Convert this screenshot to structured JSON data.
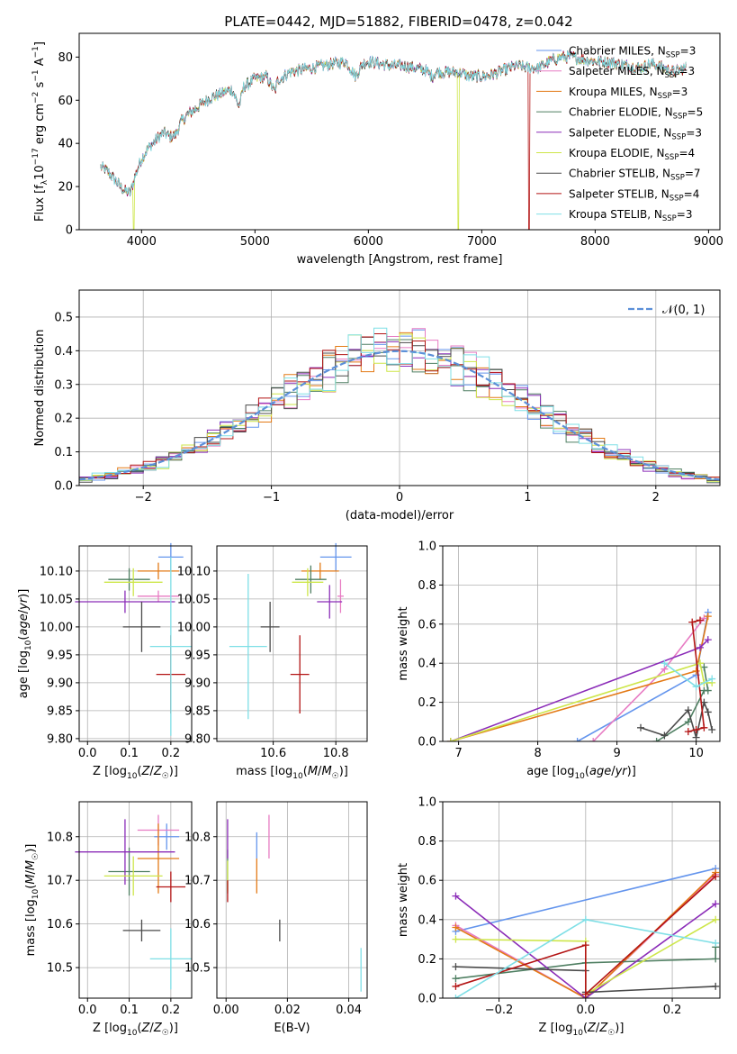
{
  "figure_title": "PLATE=0442, MJD=51882, FIBERID=0478, z=0.042",
  "model_colors": {
    "Chabrier MILES": "#6495ed",
    "Salpeter MILES": "#e77bc3",
    "Kroupa MILES": "#e37a16",
    "Chabrier ELODIE": "#4f7f62",
    "Salpeter ELODIE": "#8b2cb8",
    "Kroupa ELODIE": "#cde649",
    "Chabrier STELIB": "#4a4a4a",
    "Salpeter STELIB": "#b31414",
    "Kroupa STELIB": "#7fdfe6"
  },
  "chart_data": [
    {
      "id": "spectrum",
      "type": "line",
      "title": "PLATE=0442, MJD=51882, FIBERID=0478, z=0.042",
      "xlabel": "wavelength [Angstrom, rest frame]",
      "ylabel_parts": [
        "Flux [f",
        "λ",
        "10",
        "−17",
        " erg cm",
        "−2",
        " s",
        "−1",
        " A",
        "−1",
        "]"
      ],
      "xlim": [
        3450,
        9100
      ],
      "ylim": [
        0,
        91
      ],
      "xticks": [
        4000,
        5000,
        6000,
        7000,
        8000,
        9000
      ],
      "yticks": [
        0,
        20,
        40,
        60,
        80
      ],
      "legend_position": "top-right",
      "legend": [
        {
          "name": "Chabrier MILES",
          "nssp": "3"
        },
        {
          "name": "Salpeter MILES",
          "nssp": "3"
        },
        {
          "name": "Kroupa MILES",
          "nssp": "3"
        },
        {
          "name": "Chabrier ELODIE",
          "nssp": "5"
        },
        {
          "name": "Salpeter ELODIE",
          "nssp": "3"
        },
        {
          "name": "Kroupa ELODIE",
          "nssp": "4"
        },
        {
          "name": "Chabrier STELIB",
          "nssp": "7"
        },
        {
          "name": "Salpeter STELIB",
          "nssp": "4"
        },
        {
          "name": "Kroupa STELIB",
          "nssp": "3"
        }
      ],
      "continuum": [
        [
          3640,
          29
        ],
        [
          3700,
          27
        ],
        [
          3750,
          24
        ],
        [
          3800,
          21
        ],
        [
          3850,
          18
        ],
        [
          3900,
          17
        ],
        [
          3950,
          26
        ],
        [
          4000,
          33
        ],
        [
          4050,
          37
        ],
        [
          4100,
          40
        ],
        [
          4150,
          43
        ],
        [
          4200,
          45
        ],
        [
          4250,
          43
        ],
        [
          4300,
          44
        ],
        [
          4350,
          50
        ],
        [
          4400,
          53
        ],
        [
          4500,
          57
        ],
        [
          4600,
          61
        ],
        [
          4700,
          63
        ],
        [
          4800,
          65
        ],
        [
          4860,
          57
        ],
        [
          4900,
          66
        ],
        [
          5000,
          70
        ],
        [
          5100,
          71
        ],
        [
          5175,
          64
        ],
        [
          5200,
          69
        ],
        [
          5300,
          73
        ],
        [
          5400,
          74
        ],
        [
          5500,
          75
        ],
        [
          5600,
          76
        ],
        [
          5700,
          77
        ],
        [
          5800,
          78
        ],
        [
          5890,
          71
        ],
        [
          5950,
          77
        ],
        [
          6000,
          78
        ],
        [
          6200,
          76
        ],
        [
          6300,
          76
        ],
        [
          6400,
          75
        ],
        [
          6500,
          74
        ],
        [
          6563,
          71
        ],
        [
          6600,
          73
        ],
        [
          6800,
          73
        ],
        [
          6900,
          71
        ],
        [
          7000,
          71
        ],
        [
          7100,
          72
        ],
        [
          7200,
          74
        ],
        [
          7300,
          76
        ],
        [
          7400,
          75
        ],
        [
          7500,
          75
        ],
        [
          7600,
          78
        ],
        [
          7700,
          80
        ],
        [
          7800,
          80
        ],
        [
          7900,
          79
        ],
        [
          8000,
          78
        ],
        [
          8100,
          78
        ],
        [
          8200,
          77
        ],
        [
          8300,
          76
        ],
        [
          8400,
          75
        ],
        [
          8500,
          77
        ],
        [
          8600,
          75
        ],
        [
          8700,
          73
        ],
        [
          8800,
          75
        ]
      ],
      "dropouts": [
        {
          "model": "Kroupa ELODIE",
          "x_from": 3925,
          "x_to": 3935
        },
        {
          "model": "Kroupa ELODIE",
          "x_from": 6790,
          "x_to": 6800
        },
        {
          "model": "Salpeter STELIB",
          "x_from": 7410,
          "x_to": 7420
        }
      ]
    },
    {
      "id": "residuals",
      "type": "step",
      "xlabel": "(data-model)/error",
      "ylabel": "Normed distribution",
      "xlim": [
        -2.5,
        2.5
      ],
      "ylim": [
        0,
        0.58
      ],
      "xticks": [
        -2,
        -1,
        0,
        1,
        2
      ],
      "yticks": [
        0.0,
        0.1,
        0.2,
        0.3,
        0.4,
        0.5
      ],
      "grid": true,
      "legend_position": "top-right",
      "reference_label": "𝒩(0, 1)",
      "reference_color": "#5b8fd8"
    },
    {
      "id": "age_vs_Z",
      "type": "errorbar",
      "xlabel": "Z [log10(Z/Z☉)]",
      "ylabel": "age  [log10(age/yr)]",
      "xlim": [
        -0.02,
        0.25
      ],
      "ylim": [
        9.795,
        10.145
      ],
      "xticks": [
        0.0,
        0.1,
        0.2
      ],
      "yticks": [
        9.8,
        9.85,
        9.9,
        9.95,
        10.0,
        10.05,
        10.1
      ],
      "grid": true,
      "points": [
        {
          "model": "Chabrier MILES",
          "x": 0.2,
          "xerr": 0.03,
          "y": 10.125,
          "yerr": 0.025
        },
        {
          "model": "Salpeter MILES",
          "x": 0.17,
          "xerr": 0.05,
          "y": 10.055,
          "yerr": 0.01
        },
        {
          "model": "Kroupa MILES",
          "x": 0.17,
          "xerr": 0.05,
          "y": 10.1,
          "yerr": 0.015
        },
        {
          "model": "Chabrier ELODIE",
          "x": 0.1,
          "xerr": 0.05,
          "y": 10.085,
          "yerr": 0.02
        },
        {
          "model": "Salpeter ELODIE",
          "x": 0.09,
          "xerr": 0.12,
          "y": 10.045,
          "yerr": 0.02
        },
        {
          "model": "Kroupa ELODIE",
          "x": 0.11,
          "xerr": 0.07,
          "y": 10.08,
          "yerr": 0.025
        },
        {
          "model": "Chabrier STELIB",
          "x": 0.13,
          "xerr": 0.045,
          "y": 10.0,
          "yerr": 0.045
        },
        {
          "model": "Salpeter STELIB",
          "x": 0.2,
          "xerr": 0.035,
          "y": 9.915,
          "yerr": 0.07
        },
        {
          "model": "Kroupa STELIB",
          "x": 0.2,
          "xerr": 0.05,
          "y": 9.965,
          "yerr": 0.16
        }
      ]
    },
    {
      "id": "age_vs_mass",
      "type": "errorbar",
      "xlabel": "mass [log10(M/M☉)]",
      "ylabel": "",
      "xlim": [
        10.42,
        10.9
      ],
      "ylim": [
        9.795,
        10.145
      ],
      "xticks": [
        10.6,
        10.8
      ],
      "yticks": [
        9.8,
        9.85,
        9.9,
        9.95,
        10.0,
        10.05,
        10.1
      ],
      "grid": true,
      "points": [
        {
          "model": "Chabrier MILES",
          "x": 10.8,
          "xerr": 0.05,
          "y": 10.125,
          "yerr": 0.025
        },
        {
          "model": "Salpeter MILES",
          "x": 10.815,
          "xerr": 0.01,
          "y": 10.055,
          "yerr": 0.03
        },
        {
          "model": "Kroupa MILES",
          "x": 10.75,
          "xerr": 0.06,
          "y": 10.1,
          "yerr": 0.015
        },
        {
          "model": "Chabrier ELODIE",
          "x": 10.72,
          "xerr": 0.05,
          "y": 10.085,
          "yerr": 0.025
        },
        {
          "model": "Salpeter ELODIE",
          "x": 10.78,
          "xerr": 0.04,
          "y": 10.045,
          "yerr": 0.03
        },
        {
          "model": "Kroupa ELODIE",
          "x": 10.71,
          "xerr": 0.05,
          "y": 10.08,
          "yerr": 0.025
        },
        {
          "model": "Chabrier STELIB",
          "x": 10.59,
          "xerr": 0.03,
          "y": 10.0,
          "yerr": 0.045
        },
        {
          "model": "Salpeter STELIB",
          "x": 10.685,
          "xerr": 0.03,
          "y": 9.915,
          "yerr": 0.07
        },
        {
          "model": "Kroupa STELIB",
          "x": 10.52,
          "xerr": 0.06,
          "y": 9.965,
          "yerr": 0.13
        }
      ]
    },
    {
      "id": "mass_weight_vs_age",
      "type": "line",
      "xlabel": "age  [log10(age/yr)]",
      "ylabel": "mass weight",
      "xlim": [
        6.8,
        10.3
      ],
      "ylim": [
        0,
        1
      ],
      "xticks": [
        7,
        8,
        9,
        10
      ],
      "yticks": [
        0.0,
        0.2,
        0.4,
        0.6,
        0.8,
        1.0
      ],
      "grid": true,
      "series": [
        {
          "model": "Chabrier MILES",
          "points": [
            [
              8.5,
              0.0
            ],
            [
              10.0,
              0.34
            ],
            [
              10.15,
              0.66
            ]
          ]
        },
        {
          "model": "Salpeter MILES",
          "points": [
            [
              8.7,
              0.0
            ],
            [
              9.6,
              0.37
            ],
            [
              10.1,
              0.63
            ]
          ]
        },
        {
          "model": "Kroupa MILES",
          "points": [
            [
              6.9,
              0.0
            ],
            [
              10.0,
              0.36
            ],
            [
              10.15,
              0.64
            ]
          ]
        },
        {
          "model": "Chabrier ELODIE",
          "points": [
            [
              9.5,
              0.0
            ],
            [
              9.9,
              0.1
            ],
            [
              10.1,
              0.26
            ],
            [
              10.15,
              0.26
            ],
            [
              10.1,
              0.38
            ]
          ]
        },
        {
          "model": "Salpeter ELODIE",
          "points": [
            [
              6.9,
              0.0
            ],
            [
              10.05,
              0.48
            ],
            [
              10.15,
              0.52
            ]
          ]
        },
        {
          "model": "Kroupa ELODIE",
          "points": [
            [
              6.9,
              0.0
            ],
            [
              10.05,
              0.4
            ],
            [
              10.1,
              0.3
            ],
            [
              10.2,
              0.3
            ]
          ]
        },
        {
          "model": "Chabrier STELIB",
          "points": [
            [
              9.3,
              0.07
            ],
            [
              9.6,
              0.03
            ],
            [
              9.9,
              0.16
            ],
            [
              10.0,
              0.02
            ],
            [
              10.1,
              0.2
            ],
            [
              10.15,
              0.15
            ],
            [
              10.2,
              0.06
            ]
          ]
        },
        {
          "model": "Salpeter STELIB",
          "points": [
            [
              9.9,
              0.05
            ],
            [
              10.0,
              0.06
            ],
            [
              10.1,
              0.07
            ],
            [
              9.95,
              0.61
            ],
            [
              10.05,
              0.62
            ]
          ]
        },
        {
          "model": "Kroupa STELIB",
          "points": [
            [
              9.6,
              0.4
            ],
            [
              10.0,
              0.28
            ],
            [
              10.2,
              0.32
            ]
          ]
        }
      ]
    },
    {
      "id": "mass_vs_Z",
      "type": "errorbar",
      "xlabel": "Z [log10(Z/Z☉)]",
      "ylabel": "mass [log10(M/M☉)]",
      "xlim": [
        -0.02,
        0.25
      ],
      "ylim": [
        10.43,
        10.88
      ],
      "xticks": [
        0.0,
        0.1,
        0.2
      ],
      "yticks": [
        10.5,
        10.6,
        10.7,
        10.8
      ],
      "grid": true,
      "points": [
        {
          "model": "Chabrier MILES",
          "x": 0.19,
          "xerr": 0.03,
          "y": 10.8,
          "yerr": 0.03
        },
        {
          "model": "Salpeter MILES",
          "x": 0.17,
          "xerr": 0.05,
          "y": 10.815,
          "yerr": 0.035
        },
        {
          "model": "Kroupa MILES",
          "x": 0.17,
          "xerr": 0.05,
          "y": 10.75,
          "yerr": 0.08
        },
        {
          "model": "Chabrier ELODIE",
          "x": 0.1,
          "xerr": 0.05,
          "y": 10.72,
          "yerr": 0.055
        },
        {
          "model": "Salpeter ELODIE",
          "x": 0.09,
          "xerr": 0.12,
          "y": 10.765,
          "yerr": 0.075
        },
        {
          "model": "Kroupa ELODIE",
          "x": 0.11,
          "xerr": 0.07,
          "y": 10.71,
          "yerr": 0.045
        },
        {
          "model": "Chabrier STELIB",
          "x": 0.13,
          "xerr": 0.045,
          "y": 10.585,
          "yerr": 0.025
        },
        {
          "model": "Salpeter STELIB",
          "x": 0.2,
          "xerr": 0.035,
          "y": 10.685,
          "yerr": 0.035
        },
        {
          "model": "Kroupa STELIB",
          "x": 0.2,
          "xerr": 0.05,
          "y": 10.52,
          "yerr": 0.07
        }
      ]
    },
    {
      "id": "mass_vs_ebv",
      "type": "errorbar",
      "xlabel": "E(B-V)",
      "ylabel": "",
      "xlim": [
        -0.003,
        0.046
      ],
      "ylim": [
        10.43,
        10.88
      ],
      "xticks": [
        0.0,
        0.02,
        0.04
      ],
      "yticks": [
        10.5,
        10.6,
        10.7,
        10.8
      ],
      "grid": true,
      "points": [
        {
          "model": "Chabrier MILES",
          "x": 0.01,
          "xerr": 0,
          "y": 10.78,
          "yerr": 0.03
        },
        {
          "model": "Salpeter MILES",
          "x": 0.014,
          "xerr": 0,
          "y": 10.8,
          "yerr": 0.05
        },
        {
          "model": "Kroupa MILES",
          "x": 0.01,
          "xerr": 0,
          "y": 10.71,
          "yerr": 0.04
        },
        {
          "model": "Chabrier ELODIE",
          "x": 0.0005,
          "xerr": 0,
          "y": 10.72,
          "yerr": 0.05
        },
        {
          "model": "Salpeter ELODIE",
          "x": 0.0005,
          "xerr": 0,
          "y": 10.795,
          "yerr": 0.045
        },
        {
          "model": "Kroupa ELODIE",
          "x": 0.0005,
          "xerr": 0,
          "y": 10.71,
          "yerr": 0.035
        },
        {
          "model": "Chabrier STELIB",
          "x": 0.0175,
          "xerr": 0,
          "y": 10.585,
          "yerr": 0.025
        },
        {
          "model": "Salpeter STELIB",
          "x": 0.0005,
          "xerr": 0,
          "y": 10.675,
          "yerr": 0.025
        },
        {
          "model": "Kroupa STELIB",
          "x": 0.044,
          "xerr": 0,
          "y": 10.495,
          "yerr": 0.05
        }
      ]
    },
    {
      "id": "mass_weight_vs_Z",
      "type": "line",
      "xlabel": "Z [log10(Z/Z☉)]",
      "ylabel": "mass weight",
      "xlim": [
        -0.33,
        0.31
      ],
      "ylim": [
        0,
        1
      ],
      "xticks": [
        -0.2,
        0.0,
        0.2
      ],
      "yticks": [
        0.0,
        0.2,
        0.4,
        0.6,
        0.8,
        1.0
      ],
      "grid": true,
      "series": [
        {
          "model": "Chabrier MILES",
          "points": [
            [
              -0.3,
              0.34
            ],
            [
              0.3,
              0.66
            ]
          ]
        },
        {
          "model": "Salpeter MILES",
          "points": [
            [
              -0.3,
              0.37
            ],
            [
              0.0,
              0.0
            ],
            [
              0.3,
              0.63
            ]
          ]
        },
        {
          "model": "Kroupa MILES",
          "points": [
            [
              -0.3,
              0.36
            ],
            [
              0.0,
              0.0
            ],
            [
              0.3,
              0.64
            ]
          ]
        },
        {
          "model": "Chabrier ELODIE",
          "points": [
            [
              -0.3,
              0.1
            ],
            [
              0.0,
              0.18
            ],
            [
              0.3,
              0.2
            ],
            [
              0.3,
              0.26
            ]
          ]
        },
        {
          "model": "Salpeter ELODIE",
          "points": [
            [
              -0.3,
              0.52
            ],
            [
              0.0,
              0.0
            ],
            [
              0.3,
              0.48
            ]
          ]
        },
        {
          "model": "Kroupa ELODIE",
          "points": [
            [
              -0.3,
              0.3
            ],
            [
              0.0,
              0.29
            ],
            [
              0.0,
              0.02
            ],
            [
              0.3,
              0.4
            ]
          ]
        },
        {
          "model": "Chabrier STELIB",
          "points": [
            [
              -0.3,
              0.16
            ],
            [
              0.0,
              0.14
            ],
            [
              0.0,
              0.03
            ],
            [
              0.3,
              0.06
            ]
          ]
        },
        {
          "model": "Salpeter STELIB",
          "points": [
            [
              -0.3,
              0.06
            ],
            [
              0.0,
              0.27
            ],
            [
              0.0,
              0.02
            ],
            [
              0.3,
              0.62
            ]
          ]
        },
        {
          "model": "Kroupa STELIB",
          "points": [
            [
              -0.3,
              0.0
            ],
            [
              0.0,
              0.4
            ],
            [
              0.3,
              0.28
            ]
          ]
        }
      ]
    }
  ]
}
